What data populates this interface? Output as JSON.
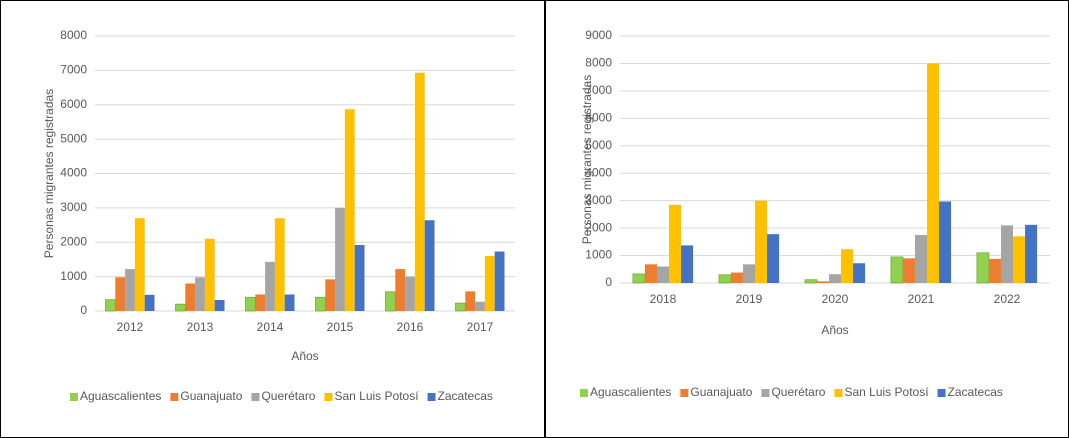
{
  "chart_data": [
    {
      "type": "bar",
      "x_label": "Años",
      "y_label": "Personas migrantes registradas",
      "categories": [
        "2012",
        "2013",
        "2014",
        "2015",
        "2016",
        "2017"
      ],
      "ylim": [
        0,
        8000
      ],
      "yticks": [
        0,
        1000,
        2000,
        3000,
        4000,
        5000,
        6000,
        7000,
        8000
      ],
      "grid": true,
      "legend": "bottom",
      "series": [
        {
          "name": "Aguascalientes",
          "color": "#92d050",
          "values": [
            330,
            200,
            400,
            400,
            560,
            230
          ]
        },
        {
          "name": "Guanajuato",
          "color": "#ed7d31",
          "values": [
            980,
            800,
            480,
            920,
            1220,
            570
          ]
        },
        {
          "name": "Querétaro",
          "color": "#a5a5a5",
          "values": [
            1220,
            980,
            1430,
            3000,
            1000,
            270
          ]
        },
        {
          "name": "San Luis Potosí",
          "color": "#ffc000",
          "values": [
            2700,
            2100,
            2700,
            5870,
            6930,
            1600
          ]
        },
        {
          "name": "Zacatecas",
          "color": "#4472c4",
          "values": [
            470,
            320,
            480,
            1920,
            2640,
            1730
          ]
        }
      ]
    },
    {
      "type": "bar",
      "x_label": "Años",
      "y_label": "Personas migrantes registradas",
      "categories": [
        "2018",
        "2019",
        "2020",
        "2021",
        "2022"
      ],
      "ylim": [
        0,
        9000
      ],
      "yticks": [
        0,
        1000,
        2000,
        3000,
        4000,
        5000,
        6000,
        7000,
        8000,
        9000
      ],
      "grid": true,
      "legend": "bottom",
      "series": [
        {
          "name": "Aguascalientes",
          "color": "#92d050",
          "values": [
            330,
            300,
            120,
            950,
            1100
          ]
        },
        {
          "name": "Guanajuato",
          "color": "#ed7d31",
          "values": [
            680,
            380,
            60,
            900,
            880
          ]
        },
        {
          "name": "Querétaro",
          "color": "#a5a5a5",
          "values": [
            600,
            680,
            320,
            1750,
            2100
          ]
        },
        {
          "name": "San Luis Potosí",
          "color": "#ffc000",
          "values": [
            2850,
            3000,
            1230,
            8000,
            1700
          ]
        },
        {
          "name": "Zacatecas",
          "color": "#4472c4",
          "values": [
            1370,
            1780,
            720,
            2970,
            2120
          ]
        }
      ]
    }
  ]
}
